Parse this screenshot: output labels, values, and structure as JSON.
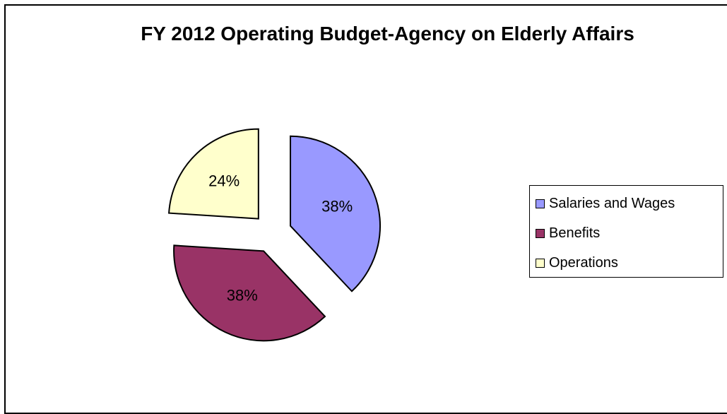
{
  "chart_data": {
    "type": "pie",
    "title": "FY 2012 Operating Budget-Agency on Elderly Affairs",
    "exploded": true,
    "legend_position": "right",
    "slices": [
      {
        "name": "Salaries and Wages",
        "value": 38,
        "label": "38%",
        "color": "#9999ff"
      },
      {
        "name": "Benefits",
        "value": 38,
        "label": "38%",
        "color": "#993366"
      },
      {
        "name": "Operations",
        "value": 24,
        "label": "24%",
        "color": "#ffffcc"
      }
    ]
  }
}
